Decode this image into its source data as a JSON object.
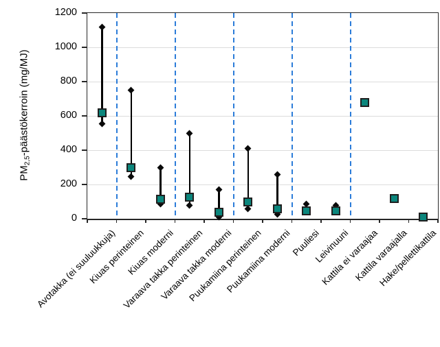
{
  "chart_data": {
    "type": "scatter",
    "title": "",
    "xlabel": "",
    "ylabel": "PM2,5-päästökerroin (mg/MJ)",
    "ylabel_parts": {
      "prefix": "PM",
      "sub": "2,5",
      "suffix": "-päästökerroin (mg/MJ)"
    },
    "ylim": [
      0,
      1200
    ],
    "yticks": [
      0,
      200,
      400,
      600,
      800,
      1000,
      1200
    ],
    "grid": "horizontal-light-gray",
    "legend": "none",
    "categories": [
      "Avotakka (ei suuluukkuja)",
      "Kiuas perinteinen",
      "Kiuas moderni",
      "Varaava takka perinteinen",
      "Varaava takka moderni",
      "Puukamiina perinteinen",
      "Puukamiina moderni",
      "Puuliesi",
      "Leivinuuni",
      "Kattila ei varaajaa",
      "Kattila varaajalla",
      "Hake/pellettikattila"
    ],
    "series": [
      {
        "name": "PM2,5-päästökerroin",
        "marker": "filled-square-teal",
        "values": [
          620,
          300,
          115,
          125,
          40,
          100,
          60,
          45,
          45,
          680,
          120,
          10
        ]
      }
    ],
    "error_bars": {
      "marker": "small-black-diamond",
      "min": [
        555,
        245,
        85,
        80,
        10,
        60,
        25,
        null,
        null,
        null,
        null,
        null
      ],
      "max": [
        1120,
        750,
        300,
        500,
        170,
        410,
        260,
        85,
        80,
        null,
        null,
        null
      ]
    },
    "separators_after_category_index": [
      0,
      2,
      4,
      6,
      8
    ],
    "colors": {
      "marker_fill": "#0b867c",
      "marker_border": "#1f1f1f",
      "whisker": "#000000",
      "error_diamond": "#0a0a0a",
      "separator_dashed": "#2b7cd9",
      "gridline": "#dcdcdc",
      "axis": "#262626",
      "background": "#ffffff"
    }
  }
}
